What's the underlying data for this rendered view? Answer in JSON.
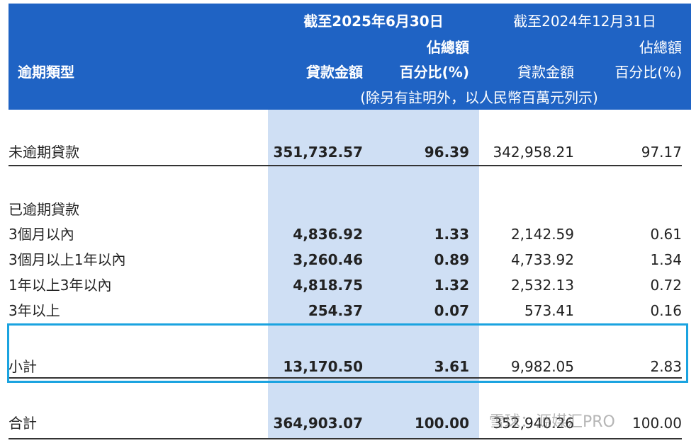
{
  "header": {
    "period_current": "截至2025年6月30日",
    "period_prior": "截至2024年12月31日",
    "share_current": "佔總額",
    "share_prior": "佔總額",
    "type_label": "逾期類型",
    "amount_current": "貸款金額",
    "percent_current": "百分比(%)",
    "amount_prior": "貸款金額",
    "percent_prior": "百分比(%)",
    "note": "(除另有註明外，以人民幣百萬元列示)"
  },
  "table": {
    "rows": [
      [
        "未逾期貸款",
        "351,732.57",
        "96.39",
        "342,958.21",
        "97.17"
      ],
      [
        "已逾期貸款"
      ],
      [
        "3個月以內",
        "4,836.92",
        "1.33",
        "2,142.59",
        "0.61"
      ],
      [
        "3個月以上1年以內",
        "3,260.46",
        "0.89",
        "4,733.92",
        "1.34"
      ],
      [
        "1年以上3年以內",
        "4,818.75",
        "1.32",
        "2,532.13",
        "0.72"
      ],
      [
        "3年以上",
        "254.37",
        "0.07",
        "573.41",
        "0.16"
      ],
      [
        "小計",
        "13,170.50",
        "3.61",
        "9,982.05",
        "2.83"
      ],
      [
        "合計",
        "364,903.07",
        "100.00",
        "352,940.26",
        "100.00"
      ]
    ]
  },
  "watermark": "雪球：源媒汇PRO"
}
